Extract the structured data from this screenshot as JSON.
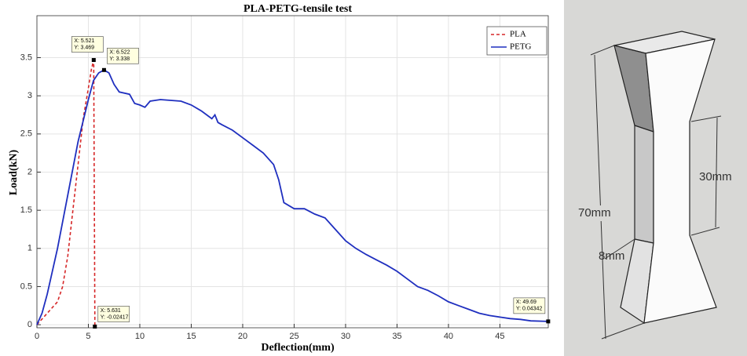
{
  "chart_data": {
    "type": "line",
    "title": "PLA-PETG-tensile test",
    "x_label": "Deflection(mm)",
    "y_label": "Load(kN)",
    "xlim": [
      0,
      49.7
    ],
    "ylim": [
      -0.04,
      4.05
    ],
    "xticks": [
      0,
      5,
      10,
      15,
      20,
      25,
      30,
      35,
      40,
      45
    ],
    "yticks": [
      0,
      0.5,
      1,
      1.5,
      2,
      2.5,
      3,
      3.5
    ],
    "grid": true,
    "legend": "top-right",
    "series": [
      {
        "name": "PLA",
        "color": "#d62728",
        "style": "dashed",
        "x": [
          0,
          1,
          2,
          2.5,
          3,
          3.5,
          4,
          4.5,
          5,
          5.3,
          5.521,
          5.631
        ],
        "values": [
          0,
          0.15,
          0.3,
          0.5,
          0.9,
          1.5,
          2.1,
          2.7,
          3.1,
          3.35,
          3.469,
          -0.02417
        ]
      },
      {
        "name": "PETG",
        "color": "#1f2fbf",
        "style": "solid",
        "x": [
          0,
          0.5,
          1,
          2,
          3,
          4,
          5,
          5.5,
          6,
          6.522,
          7,
          7.5,
          8,
          9,
          9.5,
          10,
          10.5,
          11,
          12,
          13,
          14,
          15,
          16,
          17,
          17.3,
          17.6,
          18,
          19,
          20,
          21,
          22,
          23,
          23.5,
          24,
          25,
          26,
          27,
          28,
          29,
          30,
          31,
          32,
          33,
          34,
          35,
          36,
          37,
          38,
          39,
          40,
          41,
          42,
          43,
          44,
          45,
          46,
          47,
          48,
          49.69
        ],
        "values": [
          0,
          0.15,
          0.4,
          1.0,
          1.7,
          2.4,
          2.95,
          3.2,
          3.3,
          3.338,
          3.3,
          3.15,
          3.05,
          3.02,
          2.9,
          2.88,
          2.85,
          2.93,
          2.95,
          2.94,
          2.93,
          2.88,
          2.8,
          2.7,
          2.75,
          2.65,
          2.62,
          2.55,
          2.45,
          2.35,
          2.25,
          2.1,
          1.9,
          1.6,
          1.52,
          1.52,
          1.45,
          1.4,
          1.25,
          1.1,
          1.0,
          0.92,
          0.85,
          0.78,
          0.7,
          0.6,
          0.5,
          0.45,
          0.38,
          0.3,
          0.25,
          0.2,
          0.15,
          0.12,
          0.1,
          0.08,
          0.07,
          0.05,
          0.04342
        ]
      }
    ],
    "annotations": [
      {
        "x": 5.521,
        "y": 3.469,
        "label_x": "X: 5.521",
        "label_y": "Y: 3.469"
      },
      {
        "x": 6.522,
        "y": 3.338,
        "label_x": "X: 6.522",
        "label_y": "Y: 3.338"
      },
      {
        "x": 5.631,
        "y": -0.02417,
        "label_x": "X: 5.631",
        "label_y": "Y: -0.02417"
      },
      {
        "x": 49.69,
        "y": 0.04342,
        "label_x": "X: 49.69",
        "label_y": "Y: 0.04342"
      }
    ]
  },
  "diagram": {
    "labels": [
      "70mm",
      "30mm",
      "8mm"
    ]
  }
}
